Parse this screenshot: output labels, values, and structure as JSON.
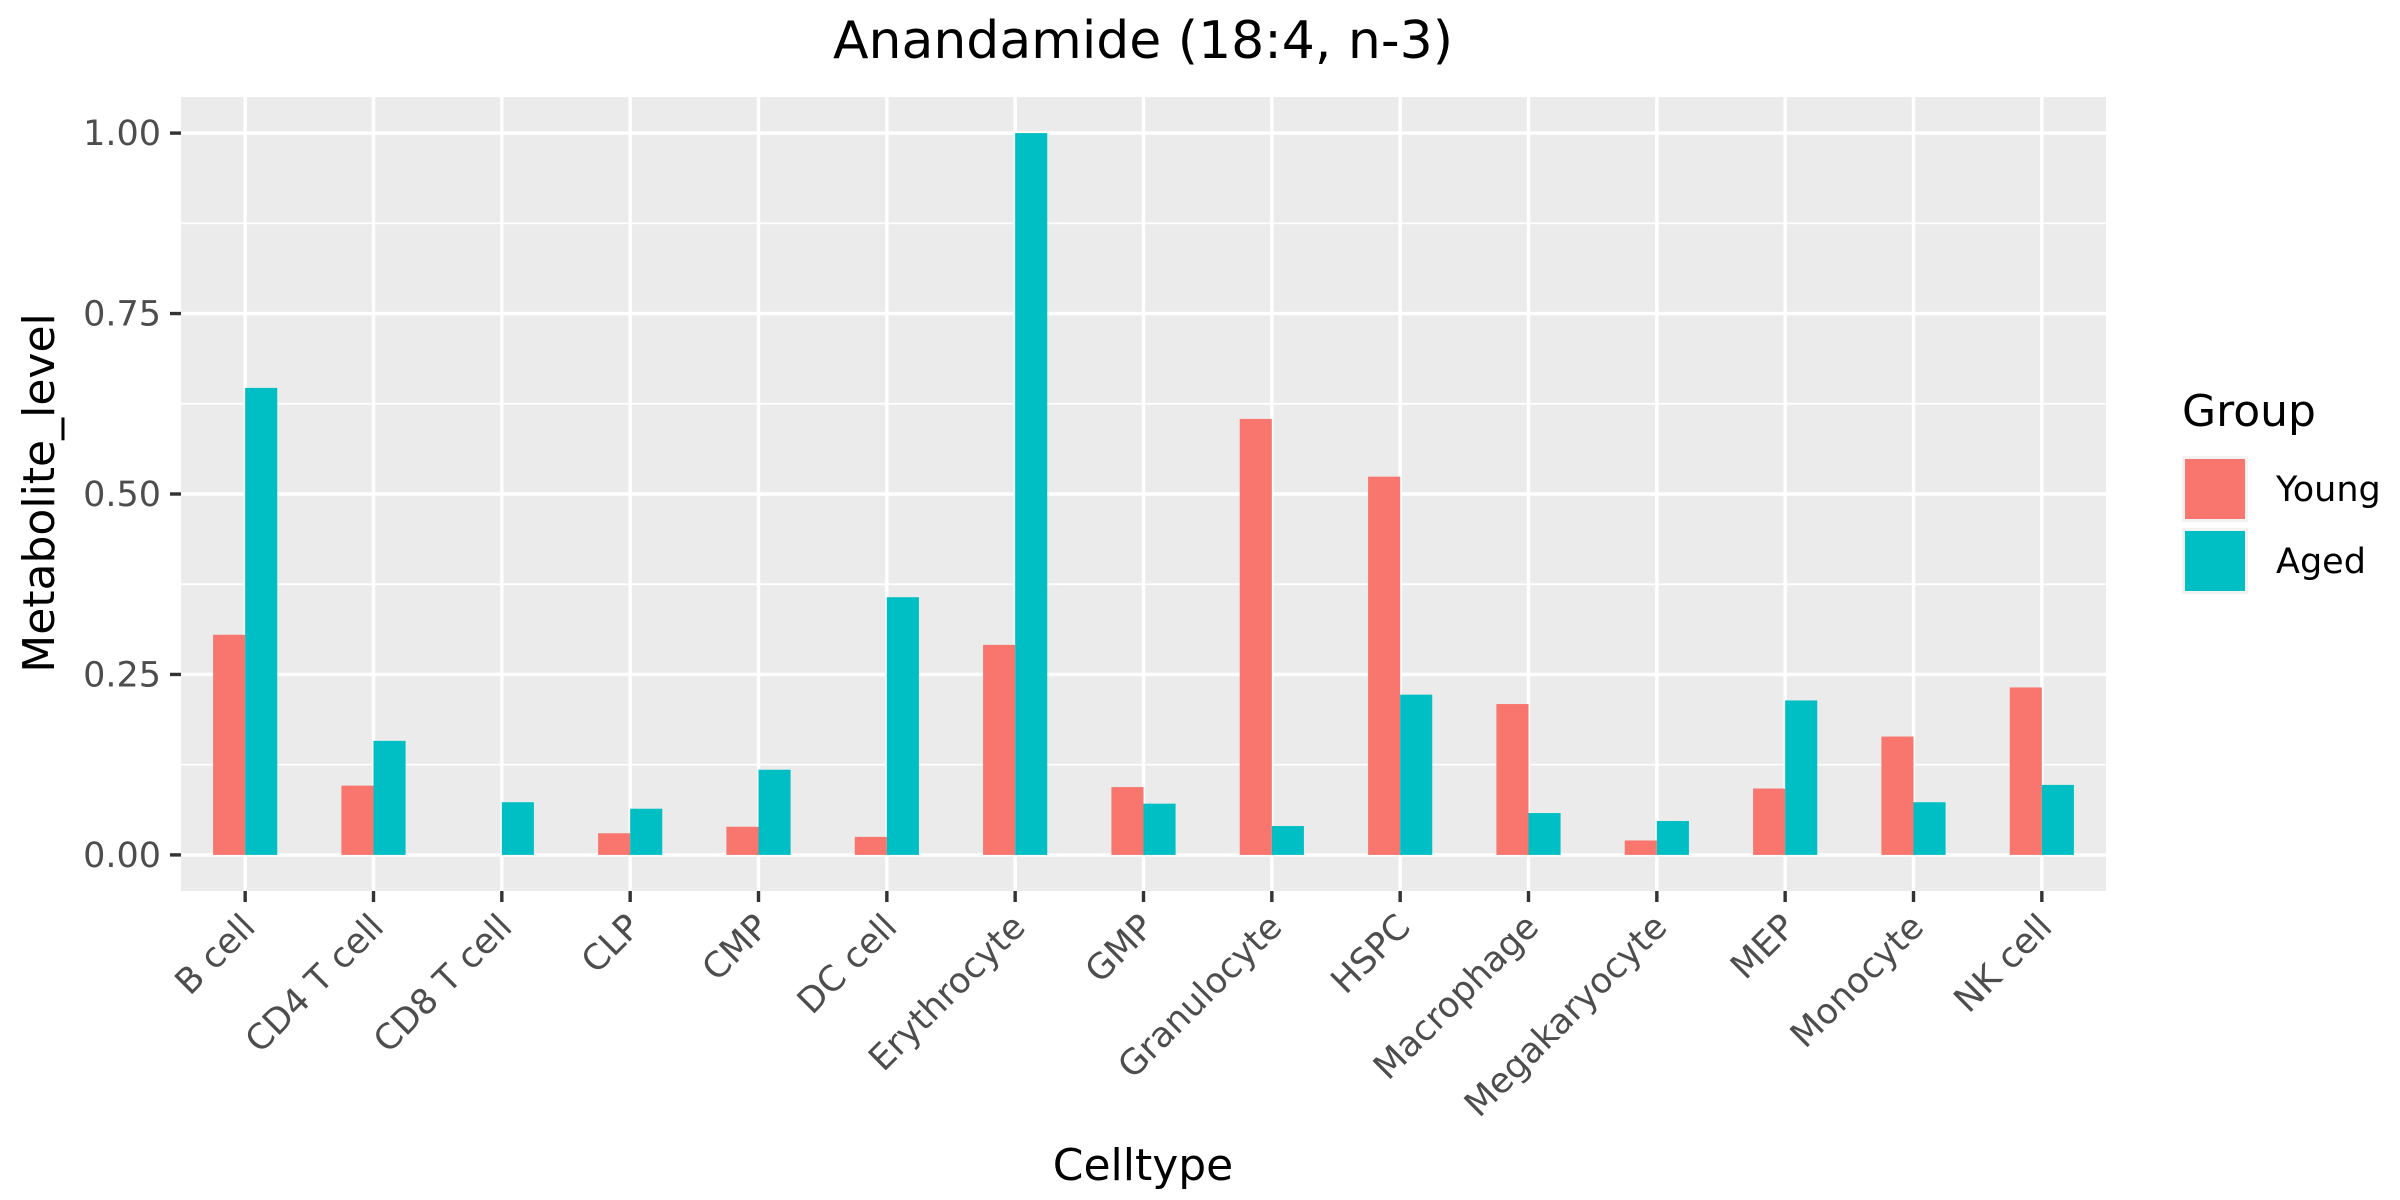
{
  "chart_data": {
    "type": "bar",
    "title": "Anandamide (18:4, n-3)",
    "xlabel": "Celltype",
    "ylabel": "Metabolite_level",
    "ylim": [
      -0.05,
      1.05
    ],
    "yticks": [
      0.0,
      0.25,
      0.5,
      0.75,
      1.0
    ],
    "ytick_labels": [
      "0.00",
      "0.25",
      "0.50",
      "0.75",
      "1.00"
    ],
    "grid": true,
    "legend": {
      "title": "Group",
      "position": "right"
    },
    "categories": [
      "B cell",
      "CD4 T cell",
      "CD8 T cell",
      "CLP",
      "CMP",
      "DC cell",
      "Erythrocyte",
      "GMP",
      "Granulocyte",
      "HSPC",
      "Macrophage",
      "Megakaryocyte",
      "MEP",
      "Monocyte",
      "NK cell"
    ],
    "series": [
      {
        "name": "Young",
        "color": "#F8766D",
        "values": [
          0.305,
          0.096,
          0.0,
          0.03,
          0.039,
          0.025,
          0.291,
          0.094,
          0.604,
          0.524,
          0.209,
          0.02,
          0.092,
          0.164,
          0.232
        ]
      },
      {
        "name": "Aged",
        "color": "#00BFC4",
        "values": [
          0.647,
          0.158,
          0.073,
          0.064,
          0.118,
          0.357,
          1.0,
          0.071,
          0.04,
          0.222,
          0.058,
          0.047,
          0.214,
          0.073,
          0.097
        ]
      }
    ]
  }
}
